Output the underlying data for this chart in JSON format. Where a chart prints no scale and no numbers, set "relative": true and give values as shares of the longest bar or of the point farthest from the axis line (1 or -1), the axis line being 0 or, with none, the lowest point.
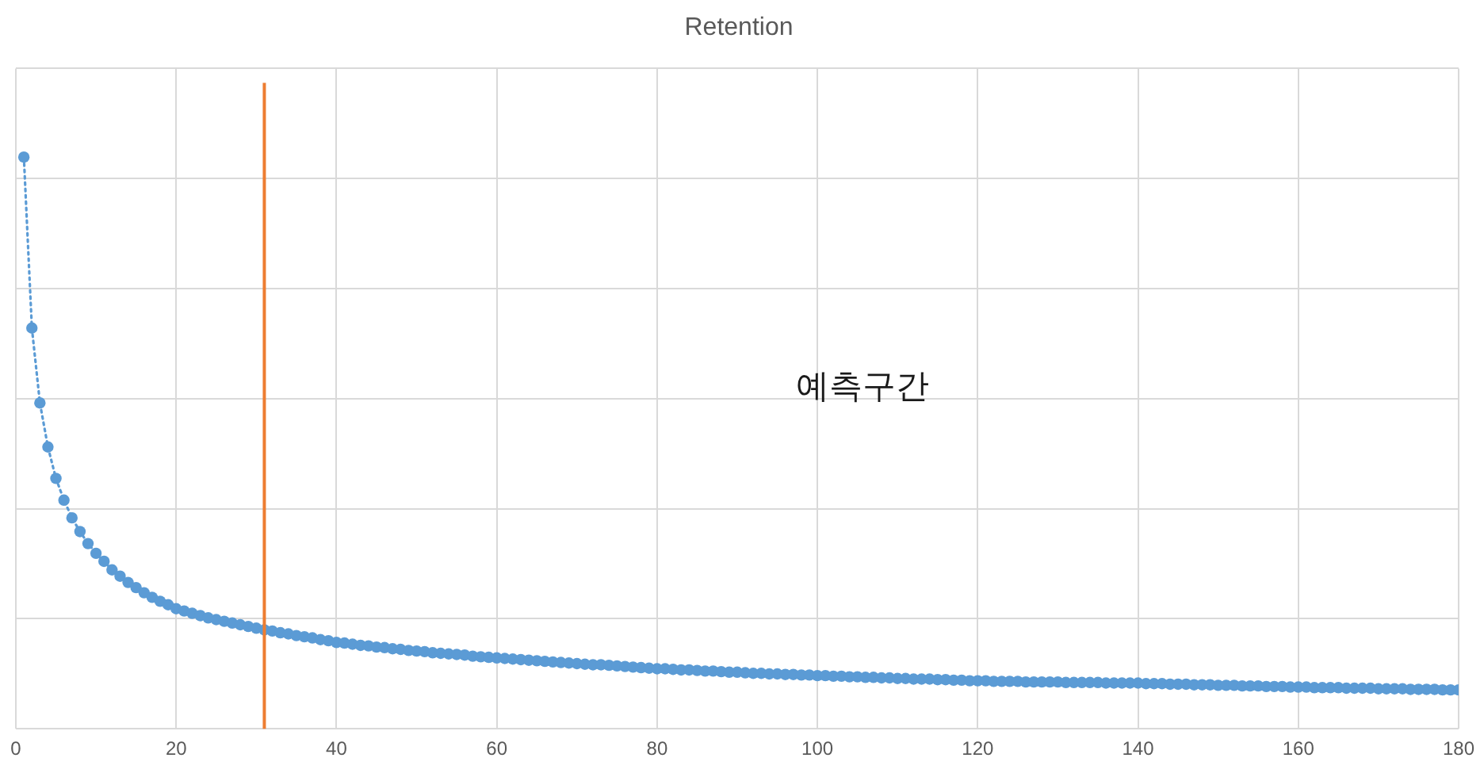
{
  "chart_data": {
    "type": "line",
    "title": "Retention",
    "x": [
      1,
      2,
      3,
      4,
      5,
      6,
      7,
      8,
      9,
      10,
      11,
      12,
      13,
      14,
      15,
      16,
      17,
      18,
      19,
      20,
      21,
      22,
      23,
      24,
      25,
      26,
      27,
      28,
      29,
      30,
      31,
      32,
      33,
      34,
      35,
      36,
      37,
      38,
      39,
      40,
      41,
      42,
      43,
      44,
      45,
      46,
      47,
      48,
      49,
      50,
      51,
      52,
      53,
      54,
      55,
      56,
      57,
      58,
      59,
      60,
      61,
      62,
      63,
      64,
      65,
      66,
      67,
      68,
      69,
      70,
      71,
      72,
      73,
      74,
      75,
      76,
      77,
      78,
      79,
      80,
      81,
      82,
      83,
      84,
      85,
      86,
      87,
      88,
      89,
      90,
      91,
      92,
      93,
      94,
      95,
      96,
      97,
      98,
      99,
      100,
      101,
      102,
      103,
      104,
      105,
      106,
      107,
      108,
      109,
      110,
      111,
      112,
      113,
      114,
      115,
      116,
      117,
      118,
      119,
      120,
      121,
      122,
      123,
      124,
      125,
      126,
      127,
      128,
      129,
      130,
      131,
      132,
      133,
      134,
      135,
      136,
      137,
      138,
      139,
      140,
      141,
      142,
      143,
      144,
      145,
      146,
      147,
      148,
      149,
      150,
      151,
      152,
      153,
      154,
      155,
      156,
      157,
      158,
      159,
      160,
      161,
      162,
      163,
      164,
      165,
      166,
      167,
      168,
      169,
      170,
      171,
      172,
      173,
      174,
      175,
      176,
      177,
      178,
      179,
      180
    ],
    "series": [
      {
        "color": "#5b9bd5",
        "values": [
          1.0,
          0.701,
          0.57,
          0.493,
          0.438,
          0.4,
          0.369,
          0.345,
          0.324,
          0.307,
          0.293,
          0.278,
          0.267,
          0.256,
          0.247,
          0.238,
          0.23,
          0.223,
          0.217,
          0.21,
          0.206,
          0.202,
          0.198,
          0.194,
          0.191,
          0.188,
          0.185,
          0.182,
          0.179,
          0.176,
          0.173,
          0.171,
          0.168,
          0.166,
          0.163,
          0.161,
          0.159,
          0.156,
          0.154,
          0.151,
          0.15,
          0.148,
          0.146,
          0.145,
          0.143,
          0.142,
          0.14,
          0.139,
          0.137,
          0.136,
          0.135,
          0.133,
          0.132,
          0.131,
          0.13,
          0.129,
          0.127,
          0.126,
          0.125,
          0.124,
          0.123,
          0.122,
          0.121,
          0.12,
          0.119,
          0.118,
          0.117,
          0.116,
          0.115,
          0.114,
          0.113,
          0.112,
          0.112,
          0.111,
          0.11,
          0.109,
          0.108,
          0.107,
          0.106,
          0.105,
          0.105,
          0.104,
          0.103,
          0.103,
          0.102,
          0.101,
          0.101,
          0.1,
          0.099,
          0.099,
          0.098,
          0.097,
          0.097,
          0.096,
          0.096,
          0.095,
          0.095,
          0.094,
          0.094,
          0.093,
          0.093,
          0.092,
          0.092,
          0.091,
          0.091,
          0.09,
          0.09,
          0.089,
          0.089,
          0.088,
          0.088,
          0.087,
          0.087,
          0.087,
          0.086,
          0.086,
          0.085,
          0.085,
          0.084,
          0.084,
          0.084,
          0.083,
          0.083,
          0.083,
          0.083,
          0.082,
          0.082,
          0.082,
          0.082,
          0.082,
          0.081,
          0.081,
          0.081,
          0.081,
          0.081,
          0.08,
          0.08,
          0.08,
          0.08,
          0.08,
          0.079,
          0.079,
          0.079,
          0.078,
          0.078,
          0.078,
          0.077,
          0.077,
          0.077,
          0.076,
          0.076,
          0.076,
          0.075,
          0.075,
          0.075,
          0.074,
          0.074,
          0.074,
          0.073,
          0.073,
          0.073,
          0.072,
          0.072,
          0.072,
          0.072,
          0.071,
          0.071,
          0.071,
          0.071,
          0.07,
          0.07,
          0.07,
          0.07,
          0.069,
          0.069,
          0.069,
          0.069,
          0.068,
          0.068,
          0.068
        ]
      }
    ],
    "relative": true,
    "xlim": [
      0,
      180
    ],
    "xticks": [
      0,
      20,
      40,
      60,
      80,
      100,
      120,
      140,
      160,
      180
    ],
    "grid": true,
    "tick_labels": "x",
    "legend": false,
    "marker": "circle",
    "line_style": "dotted",
    "ref_lines": [
      {
        "axis": "x",
        "value": 31,
        "color": "#ed7d31"
      }
    ],
    "annotations": [
      "예측구간"
    ]
  }
}
